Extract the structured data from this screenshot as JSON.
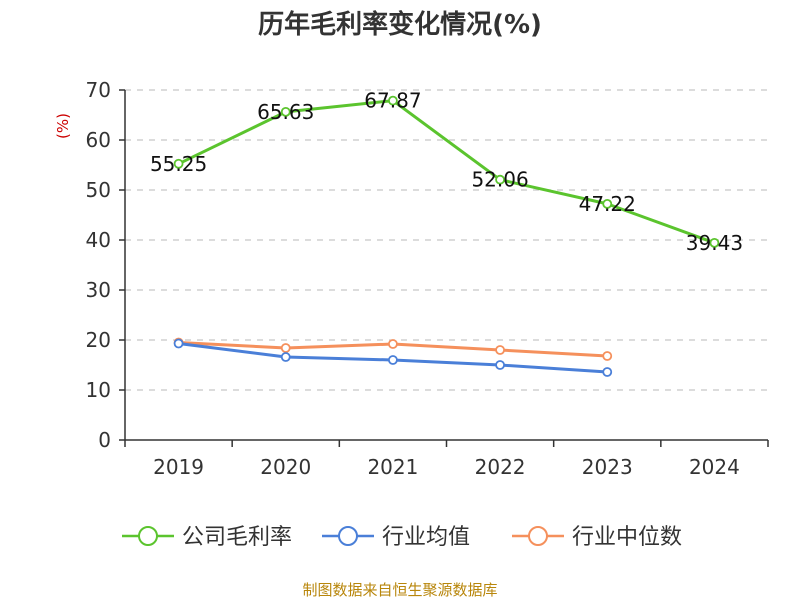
{
  "chart_data": {
    "type": "line",
    "title": "历年毛利率变化情况(%)",
    "ylabel": "(%)",
    "categories": [
      "2019",
      "2020",
      "2021",
      "2022",
      "2023",
      "2024"
    ],
    "ylim": [
      0,
      70
    ],
    "yticks": [
      0,
      10,
      20,
      30,
      40,
      50,
      60,
      70
    ],
    "grid": true,
    "legend_position": "bottom",
    "series": [
      {
        "name": "公司毛利率",
        "color": "#5bc42e",
        "labels": true,
        "values": [
          55.25,
          65.63,
          67.87,
          52.06,
          47.22,
          39.43
        ]
      },
      {
        "name": "行业均值",
        "color": "#4a7fd8",
        "labels": false,
        "values": [
          19.3,
          16.6,
          16.0,
          15.0,
          13.6,
          null
        ]
      },
      {
        "name": "行业中位数",
        "color": "#f5905c",
        "labels": false,
        "values": [
          19.5,
          18.4,
          19.2,
          18.0,
          16.8,
          null
        ]
      }
    ]
  },
  "footer": {
    "source": "制图数据来自恒生聚源数据库"
  }
}
